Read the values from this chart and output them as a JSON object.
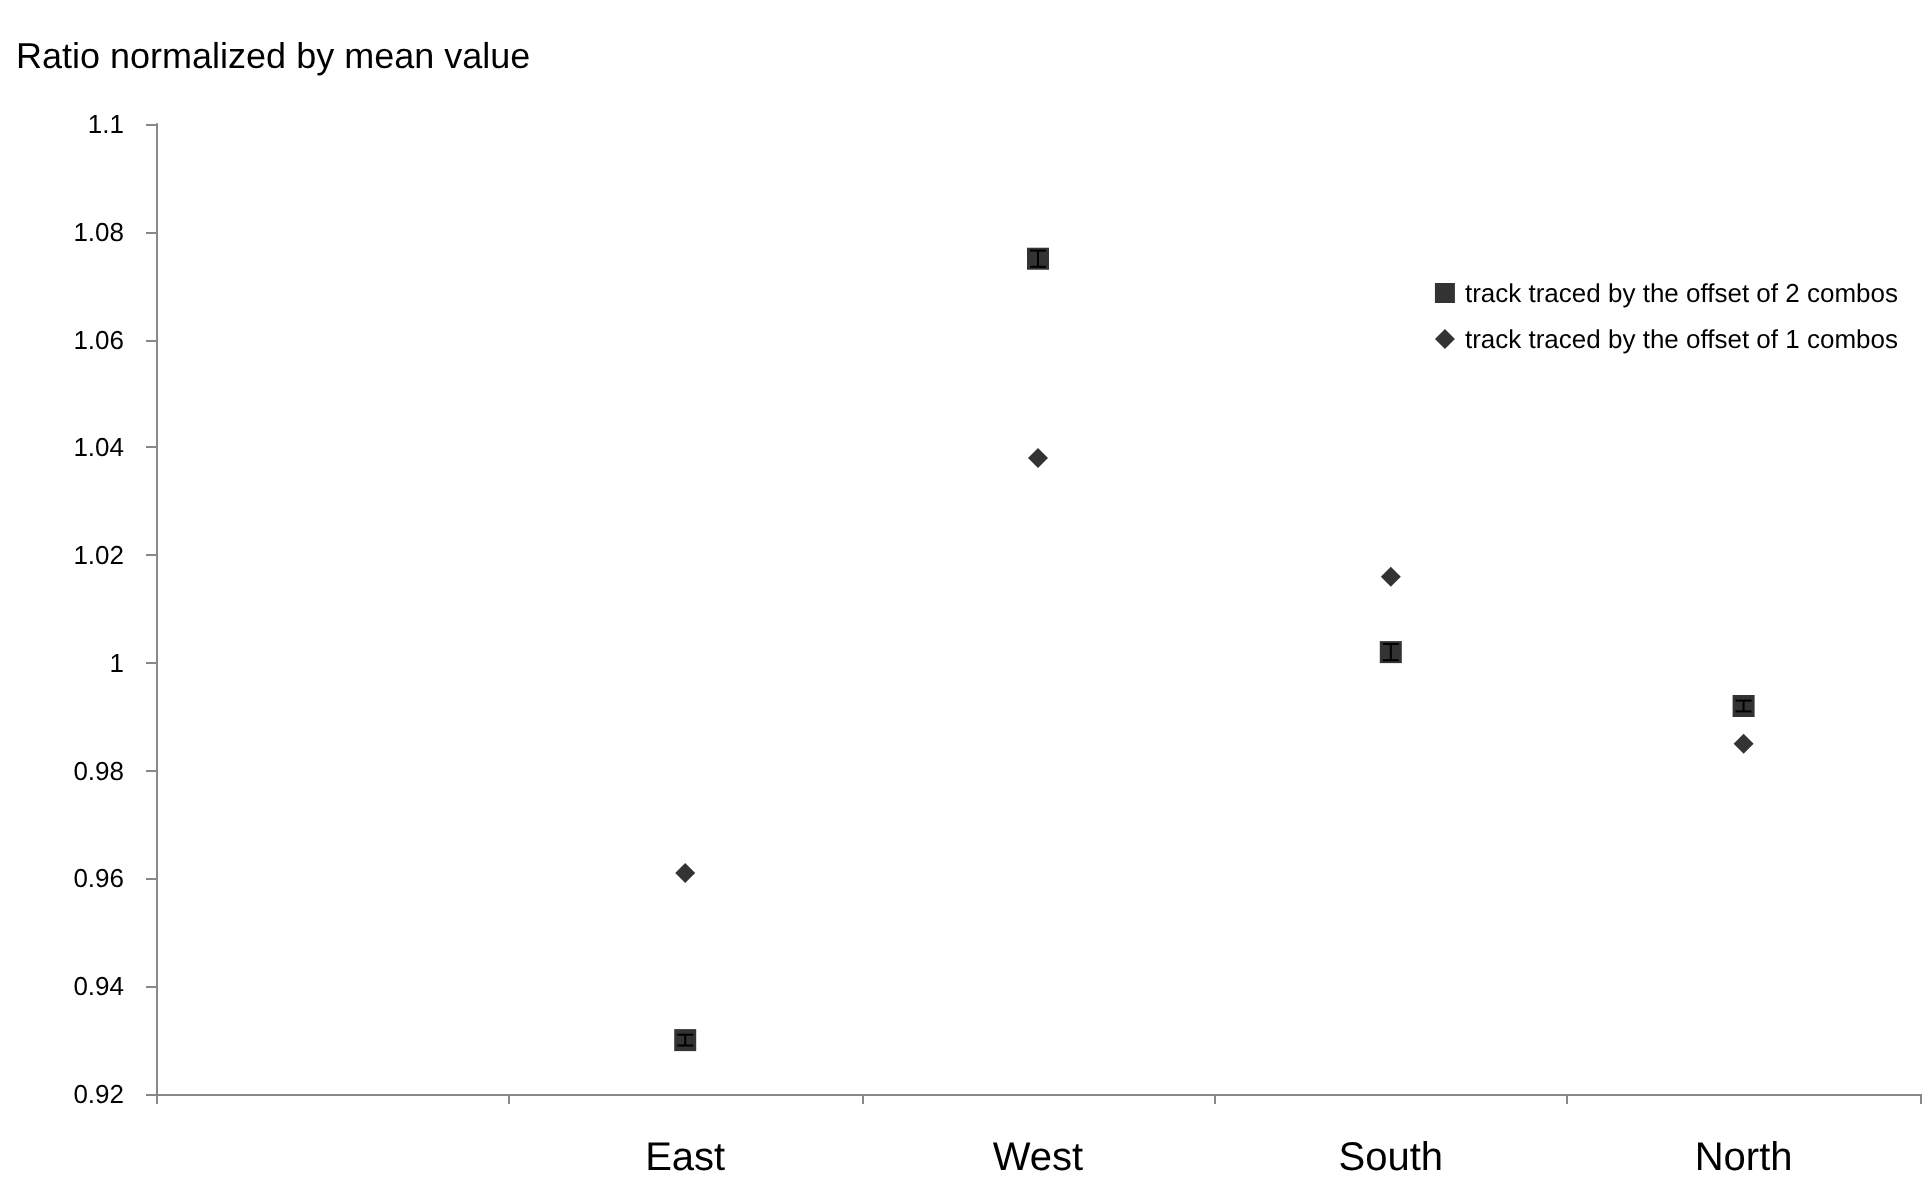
{
  "chart_data": {
    "type": "scatter",
    "ylabel": "Ratio normalized by mean value",
    "categories": [
      null,
      "East",
      "West",
      "South",
      "North"
    ],
    "series": [
      {
        "name": "track traced by the offset of 2 combos",
        "color": "#000000",
        "marker": "square",
        "values": [
          null,
          0.93,
          1.075,
          1.002,
          0.992
        ],
        "errors": [
          null,
          0.001,
          0.0015,
          0.0015,
          0.001
        ]
      },
      {
        "name": "track traced by the offset of 1 combos",
        "color": "#000000",
        "marker": "diamond",
        "values": [
          null,
          0.961,
          1.038,
          1.016,
          0.985
        ]
      }
    ],
    "ylim": [
      0.92,
      1.1
    ],
    "yticks": [
      0.92,
      0.94,
      0.96,
      0.98,
      1,
      1.02,
      1.04,
      1.06,
      1.08,
      1.1
    ],
    "grid": false,
    "legend": "top right"
  }
}
